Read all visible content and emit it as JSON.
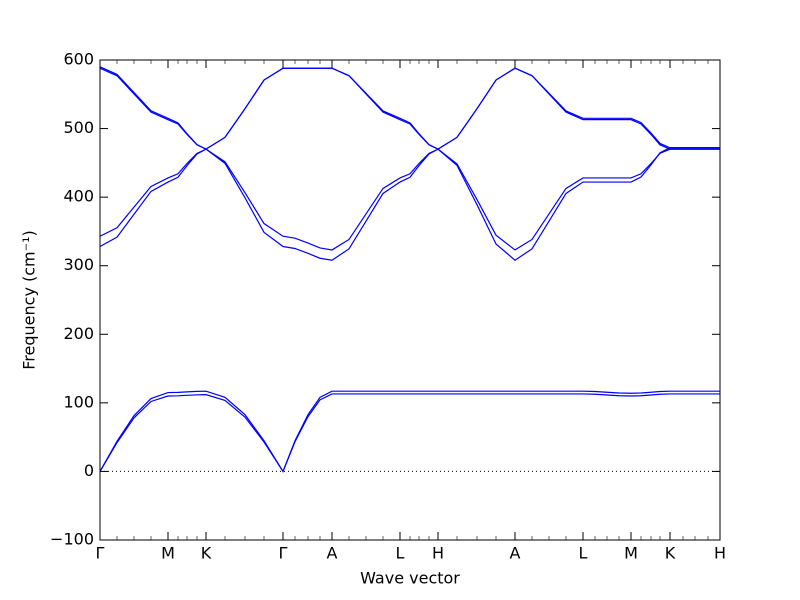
{
  "chart_data": {
    "type": "line",
    "xlabel": "Wave vector",
    "ylabel": "Frequency (cm⁻¹)",
    "xlim": [
      0,
      620
    ],
    "ylim": [
      -100,
      600
    ],
    "xticks": [
      {
        "value": 0,
        "label": "Γ"
      },
      {
        "value": 68,
        "label": "M"
      },
      {
        "value": 106,
        "label": "K"
      },
      {
        "value": 183,
        "label": "Γ"
      },
      {
        "value": 232,
        "label": "A"
      },
      {
        "value": 300,
        "label": "L"
      },
      {
        "value": 338,
        "label": "H"
      },
      {
        "value": 415,
        "label": "A"
      },
      {
        "value": 483,
        "label": "L"
      },
      {
        "value": 531,
        "label": "M"
      },
      {
        "value": 570,
        "label": "K"
      },
      {
        "value": 620,
        "label": "H"
      }
    ],
    "yticks": [
      {
        "value": -100,
        "label": "−100"
      },
      0,
      100,
      200,
      300,
      400,
      500,
      600
    ],
    "reference_line": 0,
    "x": [
      0,
      17,
      34,
      51,
      68,
      78,
      87,
      97,
      106,
      125,
      145,
      164,
      183,
      195,
      208,
      220,
      232,
      249,
      266,
      283,
      300,
      310,
      319,
      329,
      338,
      357,
      377,
      396,
      415,
      432,
      449,
      466,
      483,
      495,
      507,
      519,
      531,
      541,
      551,
      560,
      570,
      583,
      595,
      608,
      620
    ],
    "series": [
      {
        "color": "#0000ff",
        "values": [
          0,
          42,
          78,
          102,
          110,
          110.3,
          111,
          111.7,
          112,
          103.5,
          79.2,
          42.9,
          0,
          43.3,
          79.9,
          104.4,
          113,
          113,
          113,
          113,
          113,
          113,
          113,
          113,
          113,
          113,
          113,
          113,
          113,
          113,
          113,
          113,
          113,
          112.6,
          111.5,
          110.4,
          110,
          110.4,
          111.5,
          112.6,
          113,
          113,
          113,
          113,
          113
        ]
      },
      {
        "color": "#0000ff",
        "values": [
          0,
          44,
          81.3,
          106.3,
          115,
          115.3,
          116,
          116.7,
          117,
          108.1,
          82.7,
          44.8,
          0,
          44.8,
          82.7,
          108.1,
          117,
          117,
          117,
          117,
          117,
          117,
          117,
          117,
          117,
          117,
          117,
          117,
          117,
          117,
          117,
          117,
          117,
          116.6,
          115.5,
          114.4,
          114,
          114.4,
          115.5,
          116.6,
          117,
          117,
          117,
          117,
          117
        ]
      },
      {
        "color": "#0000ff",
        "values": [
          590,
          579,
          552.5,
          526,
          515,
          508.4,
          492.5,
          476.6,
          470,
          451.5,
          406.5,
          361.5,
          343,
          340.1,
          333,
          325.9,
          323,
          338.3,
          375.5,
          412.7,
          428,
          434.1,
          449,
          463.9,
          470,
          487.2,
          529,
          570.8,
          588,
          577.3,
          551.5,
          525.7,
          515,
          515,
          515,
          515,
          515,
          508.7,
          493.5,
          478.3,
          472,
          472,
          472,
          472,
          472
        ]
      },
      {
        "color": "#0000ff",
        "values": [
          588,
          577,
          550.5,
          524,
          513,
          506.7,
          491.5,
          476.3,
          470,
          449.3,
          399,
          348.7,
          328,
          325.1,
          318,
          310.9,
          308,
          324.6,
          365,
          405.4,
          422,
          429,
          446,
          463,
          470,
          487.2,
          529,
          570.8,
          588,
          577,
          550.5,
          524,
          513,
          513,
          513,
          513,
          513,
          506.7,
          491.5,
          476.3,
          470,
          470,
          470,
          470,
          470
        ]
      },
      {
        "color": "#0000ff",
        "values": [
          343,
          355.4,
          385.5,
          415.6,
          428,
          434.1,
          449,
          463.9,
          470,
          487.2,
          529,
          570.8,
          588,
          588,
          588,
          588,
          588,
          577,
          550.5,
          524,
          513,
          506.7,
          491.5,
          476.3,
          470,
          448.5,
          396.5,
          344.5,
          323,
          338.3,
          375.5,
          412.7,
          428,
          428,
          428,
          428,
          428,
          434.1,
          449,
          463.9,
          470,
          470,
          470,
          470,
          470
        ]
      },
      {
        "color": "#0000ff",
        "values": [
          328,
          341.7,
          375,
          408.3,
          422,
          429,
          446,
          463,
          470,
          487.2,
          529,
          570.8,
          588,
          588,
          588,
          588,
          588,
          577.3,
          551.5,
          525.7,
          515,
          508.4,
          492.5,
          476.6,
          470,
          446.3,
          389,
          331.7,
          308,
          324.6,
          365,
          405.4,
          422,
          422,
          422,
          422,
          422,
          429.3,
          447,
          464.7,
          472,
          472,
          472,
          472,
          472
        ]
      }
    ]
  }
}
